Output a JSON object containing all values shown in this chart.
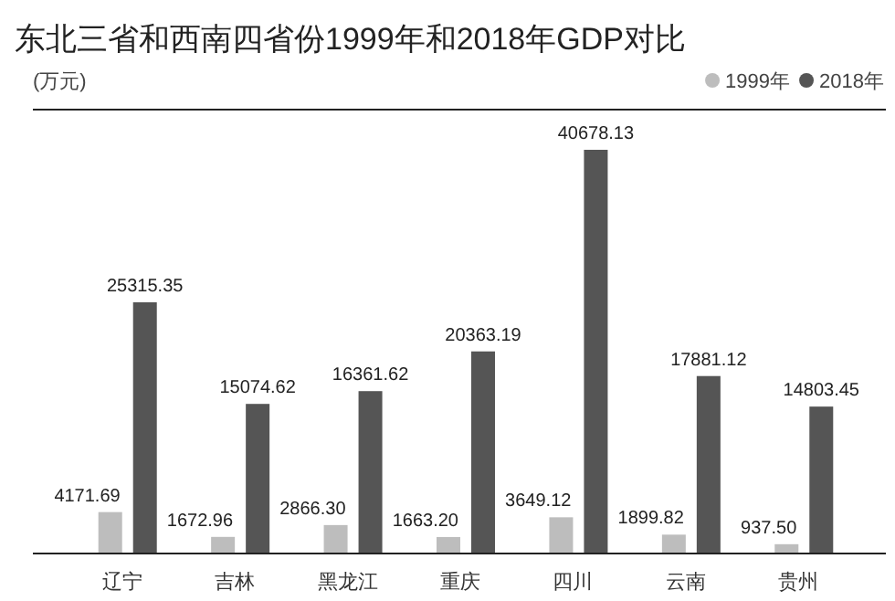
{
  "chart_data": {
    "type": "bar",
    "title": "东北三省和西南四省份1999年和2018年GDP对比",
    "ylabel": "(万元)",
    "categories": [
      "辽宁",
      "吉林",
      "黑龙江",
      "重庆",
      "四川",
      "云南",
      "贵州"
    ],
    "series": [
      {
        "name": "1999年",
        "color": "#bdbdbd",
        "values": [
          4171.69,
          1672.96,
          2866.3,
          1663.2,
          3649.12,
          1899.82,
          937.5
        ],
        "value_labels": [
          "4171.69",
          "1672.96",
          "2866.30",
          "1663.20",
          "3649.12",
          "1899.82",
          "937.50"
        ]
      },
      {
        "name": "2018年",
        "color": "#555555",
        "values": [
          25315.35,
          15074.62,
          16361.62,
          20363.19,
          40678.13,
          17881.12,
          14803.45
        ],
        "value_labels": [
          "25315.35",
          "15074.62",
          "16361.62",
          "20363.19",
          "40678.13",
          "17881.12",
          "14803.45"
        ]
      }
    ],
    "legend": "top right"
  }
}
